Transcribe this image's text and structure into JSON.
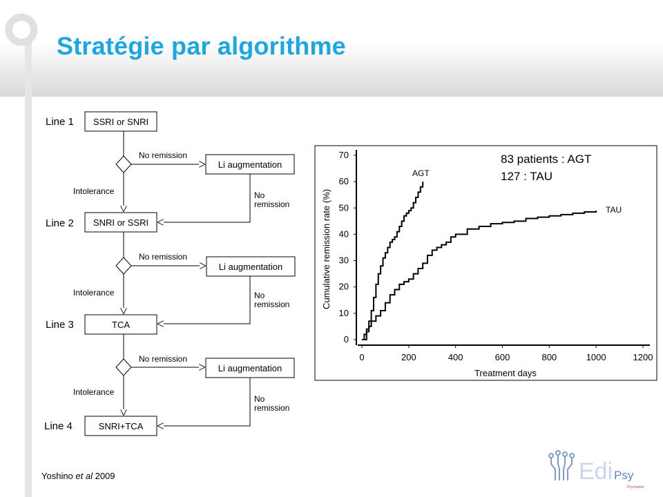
{
  "slide": {
    "title": "Stratégie par algorithme",
    "citation": {
      "author": "Yoshino ",
      "etal": "et al",
      "year": " 2009"
    }
  },
  "flowchart": {
    "lines": [
      {
        "label": "Line 1",
        "box": "SSRI or SNRI"
      },
      {
        "label": "Line 2",
        "box": "SNRI or SSRI"
      },
      {
        "label": "Line 3",
        "box": "TCA"
      },
      {
        "label": "Line 4",
        "box": "SNRI+TCA"
      }
    ],
    "no_remission": "No remission",
    "li_augmentation": "Li augmentation",
    "intolerance": "Intolerance",
    "no_remission_stacked": [
      "No",
      "remission"
    ]
  },
  "chart_data": {
    "type": "line",
    "title": "",
    "xlabel": "Treatment days",
    "ylabel": "Cumulative remission rate (%)",
    "xlim": [
      0,
      1200
    ],
    "ylim": [
      0,
      70
    ],
    "x_ticks": [
      0,
      200,
      400,
      600,
      800,
      1000,
      1200
    ],
    "y_ticks": [
      0,
      10,
      20,
      30,
      40,
      50,
      60,
      70
    ],
    "annotations": [
      "83 patients : AGT",
      "127 : TAU"
    ],
    "series": [
      {
        "name": "AGT",
        "x": [
          0,
          10,
          20,
          30,
          40,
          50,
          60,
          70,
          80,
          90,
          100,
          110,
          120,
          130,
          140,
          150,
          160,
          170,
          180,
          190,
          200,
          210,
          220,
          230,
          240,
          250,
          260
        ],
        "y": [
          0,
          2,
          4,
          7,
          11,
          16,
          21,
          25,
          28,
          31,
          33,
          35,
          37,
          38,
          39,
          41,
          43,
          45,
          47,
          48,
          49,
          50,
          52,
          54,
          56,
          58,
          60
        ]
      },
      {
        "name": "TAU",
        "x": [
          0,
          20,
          30,
          40,
          60,
          80,
          100,
          120,
          140,
          160,
          180,
          200,
          220,
          240,
          260,
          280,
          300,
          320,
          340,
          360,
          380,
          400,
          450,
          500,
          550,
          600,
          650,
          700,
          750,
          800,
          850,
          900,
          950,
          1000
        ],
        "y": [
          0,
          3,
          5,
          7,
          9,
          11,
          14,
          17,
          19,
          21,
          22,
          23,
          25,
          27,
          29,
          32,
          34,
          35,
          36,
          37,
          39,
          40,
          42,
          43,
          44,
          44.5,
          45,
          46,
          46.5,
          47,
          47.5,
          48,
          48.5,
          49
        ]
      }
    ]
  },
  "logo": {
    "main": "Edi",
    "sub": "Psy",
    "tagline": "Psychiatrie"
  }
}
